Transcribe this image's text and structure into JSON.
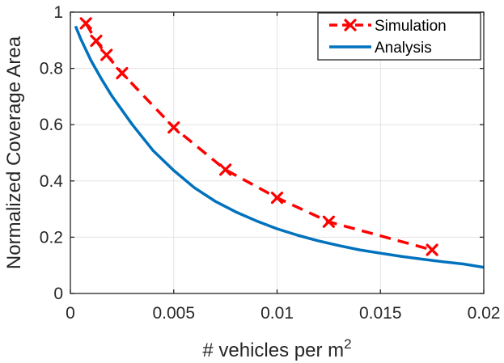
{
  "chart_data": {
    "type": "line",
    "title": "",
    "xlabel": "# vehicles per m",
    "xlabel_superscript": "2",
    "ylabel": "Normalized Coverage Area",
    "xlim": [
      0,
      0.02
    ],
    "ylim": [
      0,
      1
    ],
    "grid": true,
    "legend_position": "top-right",
    "x_ticks": [
      0,
      0.005,
      0.01,
      0.015,
      0.02
    ],
    "x_tick_labels": [
      "0",
      "0.005",
      "0.01",
      "0.015",
      "0.02"
    ],
    "y_ticks": [
      0,
      0.2,
      0.4,
      0.6,
      0.8,
      1
    ],
    "y_tick_labels": [
      "0",
      "0.2",
      "0.4",
      "0.6",
      "0.8",
      "1"
    ],
    "series": [
      {
        "name": "Simulation",
        "style": "dashed-with-x-markers",
        "color": "#ff0000",
        "x": [
          0.00075,
          0.00125,
          0.00175,
          0.0025,
          0.005,
          0.0075,
          0.01,
          0.0125,
          0.0175
        ],
        "y": [
          0.96,
          0.898,
          0.848,
          0.783,
          0.59,
          0.44,
          0.34,
          0.255,
          0.155
        ]
      },
      {
        "name": "Analysis",
        "style": "solid",
        "color": "#0072bd",
        "x": [
          0.00025,
          0.0005,
          0.00075,
          0.001,
          0.0015,
          0.002,
          0.003,
          0.004,
          0.005,
          0.006,
          0.007,
          0.008,
          0.009,
          0.01,
          0.011,
          0.012,
          0.013,
          0.014,
          0.015,
          0.016,
          0.017,
          0.018,
          0.019,
          0.02
        ],
        "y": [
          0.95,
          0.905,
          0.866,
          0.828,
          0.763,
          0.703,
          0.6,
          0.508,
          0.437,
          0.376,
          0.328,
          0.29,
          0.258,
          0.23,
          0.207,
          0.187,
          0.17,
          0.155,
          0.143,
          0.132,
          0.122,
          0.113,
          0.105,
          0.093
        ]
      }
    ]
  }
}
